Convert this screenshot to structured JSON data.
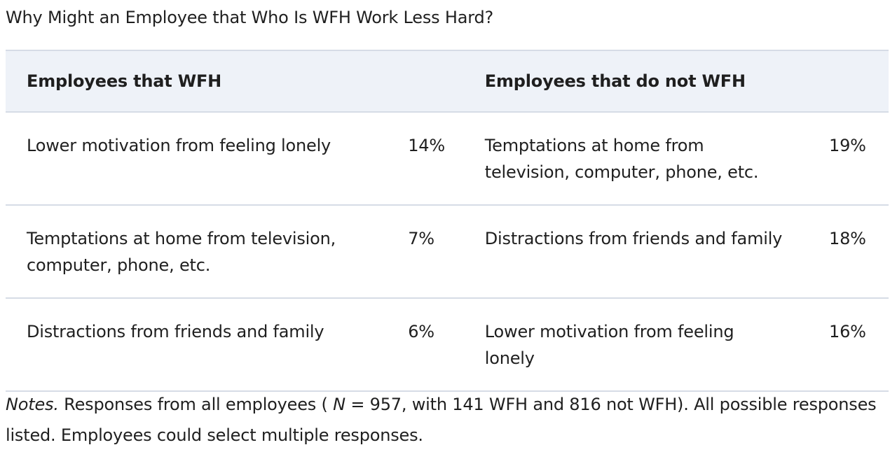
{
  "caption": "Why Might an Employee that Who Is WFH Work Less Hard?",
  "table": {
    "headers": [
      "Employees that WFH",
      "Employees that do not WFH"
    ],
    "rows": [
      {
        "wfh_reason": "Lower motivation from feeling lonely",
        "wfh_pct": "14%",
        "nonwfh_reason": "Temptations at home from television, computer, phone, etc.",
        "nonwfh_pct": "19%"
      },
      {
        "wfh_reason": "Temptations at home from television, computer, phone, etc.",
        "wfh_pct": "7%",
        "nonwfh_reason": "Distractions from friends and family",
        "nonwfh_pct": "18%"
      },
      {
        "wfh_reason": "Distractions from friends and family",
        "wfh_pct": "6%",
        "nonwfh_reason": "Lower motivation from feeling lonely",
        "nonwfh_pct": "16%"
      }
    ]
  },
  "notes": {
    "label": "Notes.",
    "text_before_n": " Responses from all employees ( ",
    "n_symbol": "N",
    "text_after_n": " = 957, with 141 WFH and 816 not WFH). All possible responses listed. Employees could select multiple responses."
  }
}
